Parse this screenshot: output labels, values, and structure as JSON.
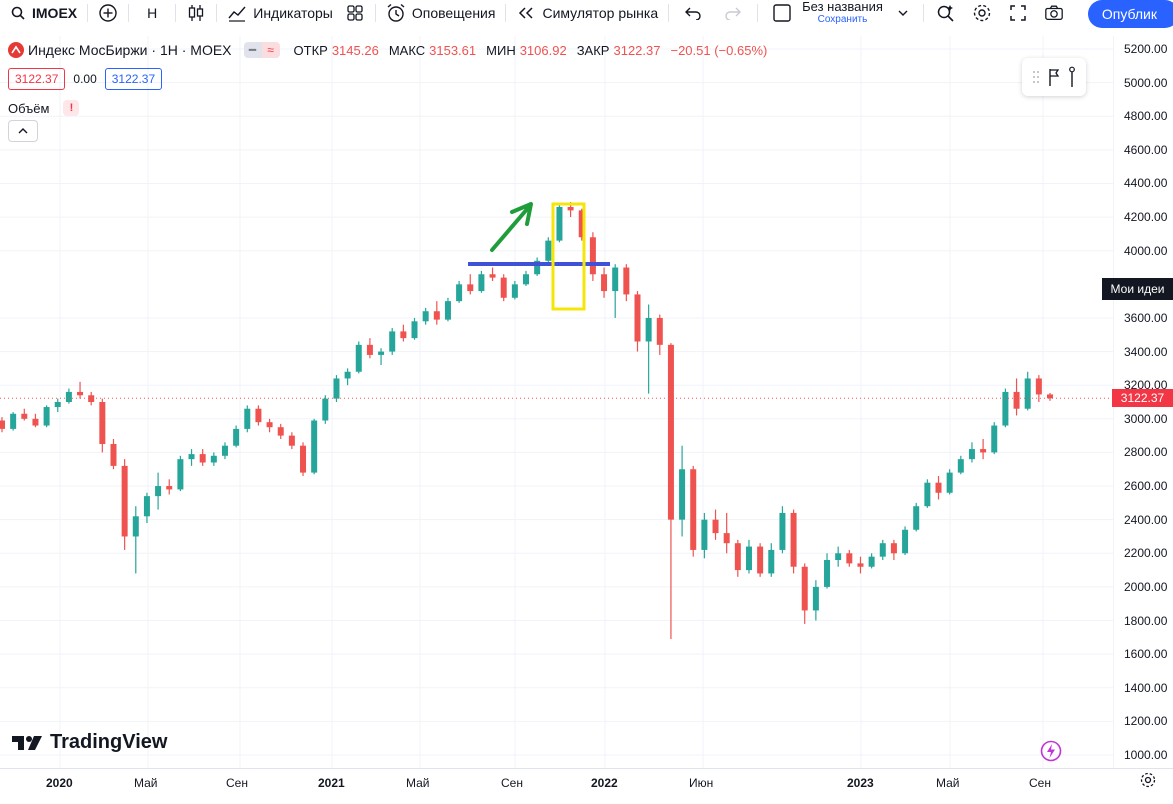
{
  "toolbar": {
    "symbol": "IMOEX",
    "interval": "H",
    "indicators": "Индикаторы",
    "alerts": "Оповещения",
    "replay": "Симулятор рынка",
    "layout_name": "Без названия",
    "save": "Сохранить",
    "publish": "Опублик"
  },
  "legend": {
    "title": "Индекс МосБиржи · 1H · MOEX",
    "open_label": "ОТКР",
    "open": "3145.26",
    "high_label": "МАКС",
    "high": "3153.61",
    "low_label": "МИН",
    "low": "3106.92",
    "close_label": "ЗАКР",
    "close": "3122.37",
    "change": "−20.51 (−0.65%)",
    "bid": "3122.37",
    "spread": "0.00",
    "ask": "3122.37",
    "volume_label": "Объём",
    "warning": "!"
  },
  "price_axis": {
    "ticks": [
      "5200.00",
      "5000.00",
      "4800.00",
      "4600.00",
      "4400.00",
      "4200.00",
      "4000.00",
      "3600.00",
      "3400.00",
      "3200.00",
      "3000.00",
      "2800.00",
      "2600.00",
      "2400.00",
      "2200.00",
      "2000.00",
      "1800.00",
      "1600.00",
      "1400.00",
      "1200.00",
      "1000.00"
    ],
    "last_price": "3122.37",
    "ideas_label": "Мои идеи"
  },
  "time_axis": {
    "labels": [
      "2020",
      "Май",
      "Сен",
      "2021",
      "Май",
      "Сен",
      "2022",
      "Июн",
      "2023",
      "Май",
      "Сен"
    ]
  },
  "branding": {
    "logo_text": "TradingView"
  },
  "colors": {
    "up": "#26a69a",
    "down": "#ef5350",
    "accent": "#2962ff",
    "level_line": "#3f51d6",
    "highlight_box": "#f5e60a",
    "arrow": "#1f9d3a"
  },
  "chart_data": {
    "type": "candlestick",
    "ylim": [
      1000,
      5200
    ],
    "series": [
      {
        "name": "IMOEX",
        "values": [
          [
            2990,
            3010,
            2920,
            2940
          ],
          [
            2940,
            3040,
            2930,
            3030
          ],
          [
            3030,
            3060,
            2990,
            3000
          ],
          [
            3000,
            3030,
            2950,
            2960
          ],
          [
            2960,
            3080,
            2950,
            3070
          ],
          [
            3070,
            3120,
            3040,
            3100
          ],
          [
            3100,
            3180,
            3090,
            3160
          ],
          [
            3160,
            3220,
            3120,
            3140
          ],
          [
            3140,
            3160,
            3080,
            3100
          ],
          [
            3100,
            3120,
            2800,
            2850
          ],
          [
            2850,
            2880,
            2700,
            2720
          ],
          [
            2720,
            2760,
            2220,
            2300
          ],
          [
            2300,
            2480,
            2080,
            2420
          ],
          [
            2420,
            2560,
            2380,
            2540
          ],
          [
            2540,
            2680,
            2460,
            2600
          ],
          [
            2600,
            2640,
            2550,
            2580
          ],
          [
            2580,
            2780,
            2570,
            2760
          ],
          [
            2760,
            2820,
            2720,
            2790
          ],
          [
            2790,
            2820,
            2720,
            2740
          ],
          [
            2740,
            2800,
            2720,
            2780
          ],
          [
            2780,
            2860,
            2760,
            2840
          ],
          [
            2840,
            2960,
            2830,
            2940
          ],
          [
            2940,
            3080,
            2920,
            3060
          ],
          [
            3060,
            3080,
            2960,
            2980
          ],
          [
            2980,
            3000,
            2920,
            2950
          ],
          [
            2950,
            2970,
            2880,
            2900
          ],
          [
            2900,
            2920,
            2820,
            2840
          ],
          [
            2840,
            2860,
            2660,
            2680
          ],
          [
            2680,
            3000,
            2670,
            2990
          ],
          [
            2990,
            3140,
            2970,
            3120
          ],
          [
            3120,
            3260,
            3100,
            3240
          ],
          [
            3240,
            3300,
            3200,
            3280
          ],
          [
            3280,
            3460,
            3270,
            3440
          ],
          [
            3440,
            3480,
            3360,
            3380
          ],
          [
            3380,
            3420,
            3320,
            3400
          ],
          [
            3400,
            3540,
            3380,
            3520
          ],
          [
            3520,
            3560,
            3460,
            3480
          ],
          [
            3480,
            3600,
            3470,
            3580
          ],
          [
            3580,
            3660,
            3560,
            3640
          ],
          [
            3640,
            3700,
            3560,
            3590
          ],
          [
            3590,
            3720,
            3580,
            3700
          ],
          [
            3700,
            3820,
            3690,
            3800
          ],
          [
            3800,
            3860,
            3740,
            3760
          ],
          [
            3760,
            3880,
            3750,
            3860
          ],
          [
            3860,
            3900,
            3820,
            3840
          ],
          [
            3840,
            3860,
            3700,
            3720
          ],
          [
            3720,
            3820,
            3710,
            3800
          ],
          [
            3800,
            3880,
            3790,
            3860
          ],
          [
            3860,
            3960,
            3850,
            3940
          ],
          [
            3940,
            4080,
            3930,
            4060
          ],
          [
            4060,
            4280,
            4050,
            4260
          ],
          [
            4260,
            4290,
            4200,
            4240
          ],
          [
            4240,
            4250,
            4060,
            4080
          ],
          [
            4080,
            4110,
            3820,
            3860
          ],
          [
            3860,
            3900,
            3720,
            3760
          ],
          [
            3760,
            3920,
            3600,
            3900
          ],
          [
            3900,
            3920,
            3700,
            3740
          ],
          [
            3740,
            3760,
            3400,
            3460
          ],
          [
            3460,
            3680,
            3150,
            3600
          ],
          [
            3600,
            3620,
            3380,
            3440
          ],
          [
            3440,
            3450,
            1690,
            2400
          ],
          [
            2400,
            2840,
            2300,
            2700
          ],
          [
            2700,
            2720,
            2180,
            2220
          ],
          [
            2220,
            2440,
            2170,
            2400
          ],
          [
            2400,
            2460,
            2280,
            2320
          ],
          [
            2320,
            2440,
            2200,
            2260
          ],
          [
            2260,
            2280,
            2060,
            2100
          ],
          [
            2100,
            2280,
            2080,
            2240
          ],
          [
            2240,
            2260,
            2060,
            2080
          ],
          [
            2080,
            2260,
            2060,
            2220
          ],
          [
            2220,
            2480,
            2200,
            2440
          ],
          [
            2440,
            2460,
            2080,
            2120
          ],
          [
            2120,
            2140,
            1780,
            1860
          ],
          [
            1860,
            2040,
            1800,
            2000
          ],
          [
            2000,
            2200,
            1990,
            2160
          ],
          [
            2160,
            2240,
            2120,
            2200
          ],
          [
            2200,
            2220,
            2120,
            2140
          ],
          [
            2140,
            2180,
            2080,
            2120
          ],
          [
            2120,
            2200,
            2110,
            2180
          ],
          [
            2180,
            2280,
            2160,
            2260
          ],
          [
            2260,
            2280,
            2160,
            2200
          ],
          [
            2200,
            2360,
            2190,
            2340
          ],
          [
            2340,
            2500,
            2330,
            2480
          ],
          [
            2480,
            2640,
            2470,
            2620
          ],
          [
            2620,
            2660,
            2520,
            2560
          ],
          [
            2560,
            2700,
            2550,
            2680
          ],
          [
            2680,
            2780,
            2670,
            2760
          ],
          [
            2760,
            2860,
            2740,
            2820
          ],
          [
            2820,
            2880,
            2760,
            2800
          ],
          [
            2800,
            2980,
            2790,
            2960
          ],
          [
            2960,
            3180,
            2950,
            3160
          ],
          [
            3160,
            3240,
            3020,
            3060
          ],
          [
            3060,
            3280,
            3050,
            3240
          ],
          [
            3240,
            3260,
            3100,
            3145
          ],
          [
            3145,
            3154,
            3107,
            3122
          ]
        ]
      }
    ]
  }
}
